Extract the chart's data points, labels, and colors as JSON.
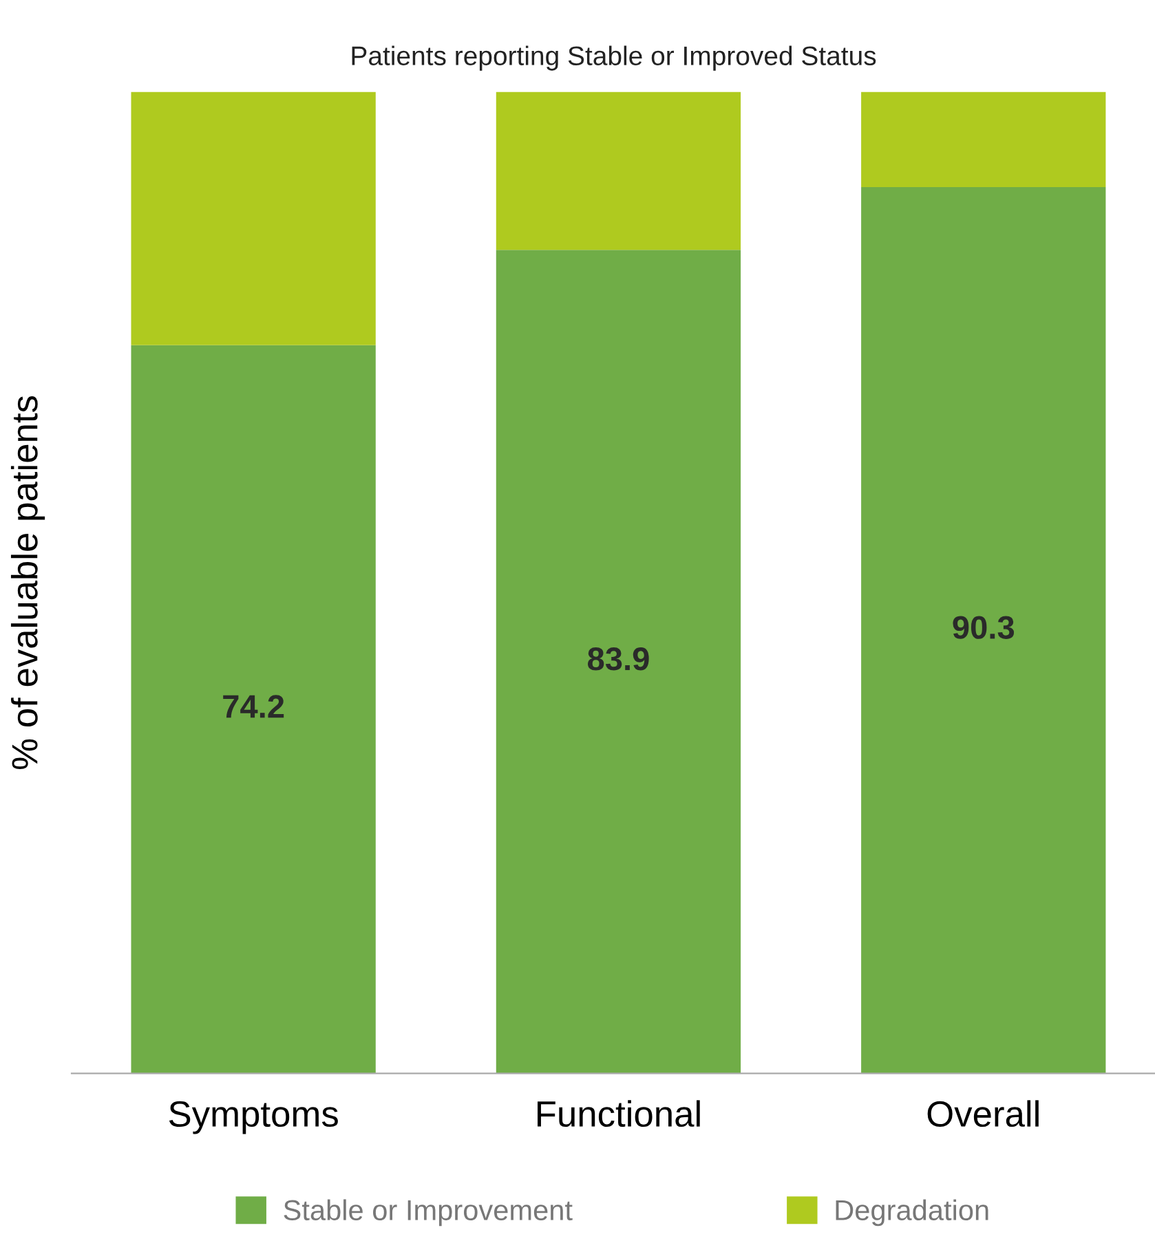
{
  "chart_data": {
    "type": "bar",
    "title": "Patients reporting Stable or Improved Status",
    "ylabel": "% of evaluable patients",
    "categories": [
      "Symptoms",
      "Functional",
      "Overall"
    ],
    "stacked": true,
    "series": [
      {
        "name": "Stable or Improvement",
        "color": "#70ad47",
        "values": [
          74.2,
          83.9,
          90.3
        ],
        "value_labels": [
          "74.2",
          "83.9",
          "90.3"
        ]
      },
      {
        "name": "Degradation",
        "color": "#afca1f",
        "values": [
          25.8,
          16.1,
          9.7
        ]
      }
    ],
    "ylim": [
      0,
      100
    ],
    "tick_labels": "x",
    "grid": false,
    "legend": "bottom"
  }
}
